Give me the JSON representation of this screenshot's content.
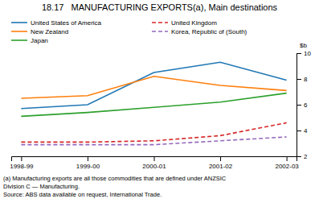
{
  "chart_data": {
    "type": "line",
    "title": "18.17   MANUFACTURING EXPORTS(a), Main destinations",
    "ylabel": "$b",
    "categories": [
      "1998-99",
      "1999-00",
      "2000-01",
      "2001-02",
      "2002-03"
    ],
    "series": [
      {
        "name": "United States of America",
        "values": [
          5.7,
          6.0,
          8.5,
          9.3,
          7.9
        ],
        "line_style": "solid"
      },
      {
        "name": "New Zealand",
        "values": [
          6.5,
          6.7,
          8.2,
          7.5,
          7.1
        ],
        "line_style": "solid"
      },
      {
        "name": "Japan",
        "values": [
          5.1,
          5.4,
          5.8,
          6.2,
          6.9
        ],
        "line_style": "solid"
      },
      {
        "name": "United Kingdom",
        "values": [
          3.1,
          3.1,
          3.2,
          3.6,
          4.6
        ],
        "line_style": "dashed"
      },
      {
        "name": "Korea, Republic of (South)",
        "values": [
          2.9,
          2.9,
          2.9,
          3.2,
          3.5
        ],
        "line_style": "dashed"
      }
    ],
    "ylim": [
      2,
      10
    ],
    "yticks": [
      2,
      4,
      6,
      8,
      10
    ],
    "grid": false,
    "legend": "upper left",
    "annotations": [
      "(a) Manufacturing exports are all those commodities that are defined under ANZSIC",
      "Division C — Manufacturing.",
      "Source: ABS data available on request, International Trade."
    ]
  }
}
